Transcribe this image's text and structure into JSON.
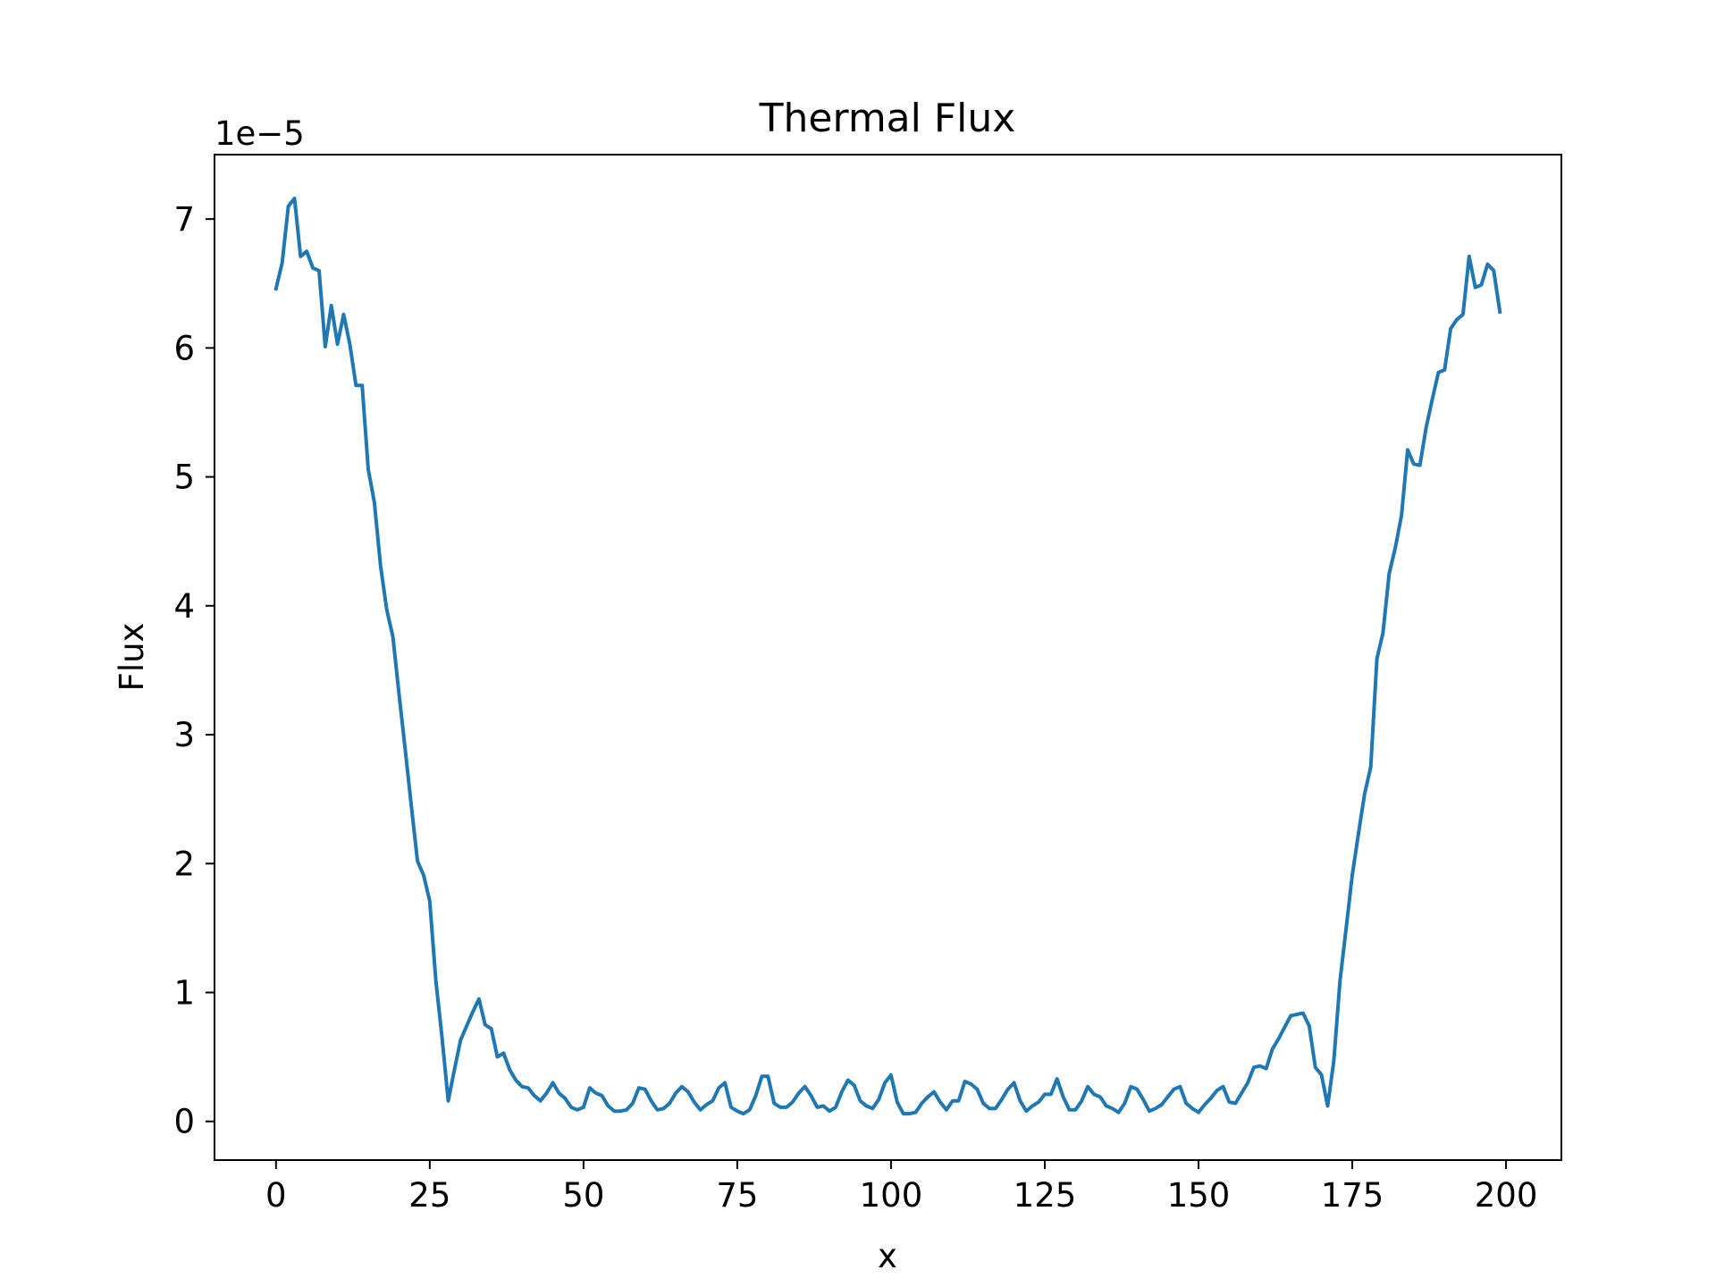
{
  "chart_data": {
    "type": "line",
    "title": "Thermal Flux",
    "xlabel": "x",
    "ylabel": "Flux",
    "y_scale_text": "1e−5",
    "y_multiplier": 1e-05,
    "xlim": [
      -10,
      209
    ],
    "ylim": [
      -0.3,
      7.5
    ],
    "x_ticks": [
      0,
      25,
      50,
      75,
      100,
      125,
      150,
      175,
      200
    ],
    "y_ticks": [
      0,
      1,
      2,
      3,
      4,
      5,
      6,
      7
    ],
    "grid": false,
    "legend": "none",
    "line_color": "#1f77b4",
    "series": [
      {
        "x": [
          0,
          1,
          2,
          3,
          4,
          5,
          6,
          7,
          8,
          9,
          10,
          11,
          12,
          13,
          14,
          15,
          16,
          17,
          18,
          19,
          20,
          21,
          22,
          23,
          24,
          25,
          26,
          27,
          28,
          29,
          30,
          31,
          32,
          33,
          34,
          35,
          36,
          37,
          38,
          39,
          40,
          41,
          42,
          43,
          44,
          45,
          46,
          47,
          48,
          49,
          50,
          51,
          52,
          53,
          54,
          55,
          56,
          57,
          58,
          59,
          60,
          61,
          62,
          63,
          64,
          65,
          66,
          67,
          68,
          69,
          70,
          71,
          72,
          73,
          74,
          75,
          76,
          77,
          78,
          79,
          80,
          81,
          82,
          83,
          84,
          85,
          86,
          87,
          88,
          89,
          90,
          91,
          92,
          93,
          94,
          95,
          96,
          97,
          98,
          99,
          100,
          101,
          102,
          103,
          104,
          105,
          106,
          107,
          108,
          109,
          110,
          111,
          112,
          113,
          114,
          115,
          116,
          117,
          118,
          119,
          120,
          121,
          122,
          123,
          124,
          125,
          126,
          127,
          128,
          129,
          130,
          131,
          132,
          133,
          134,
          135,
          136,
          137,
          138,
          139,
          140,
          141,
          142,
          143,
          144,
          145,
          146,
          147,
          148,
          149,
          150,
          151,
          152,
          153,
          154,
          155,
          156,
          157,
          158,
          159,
          160,
          161,
          162,
          163,
          164,
          165,
          166,
          167,
          168,
          169,
          170,
          171,
          172,
          173,
          174,
          175,
          176,
          177,
          178,
          179,
          180,
          181,
          182,
          183,
          184,
          185,
          186,
          187,
          188,
          189,
          190,
          191,
          192,
          193,
          194,
          195,
          196,
          197,
          198,
          199
        ],
        "y": [
          6.46,
          6.66,
          7.1,
          7.16,
          6.71,
          6.75,
          6.62,
          6.6,
          6.01,
          6.33,
          6.03,
          6.26,
          6.03,
          5.71,
          5.71,
          5.06,
          4.8,
          4.31,
          3.97,
          3.76,
          3.32,
          2.89,
          2.45,
          2.02,
          1.91,
          1.71,
          1.09,
          0.65,
          0.16,
          0.4,
          0.63,
          0.74,
          0.85,
          0.95,
          0.75,
          0.72,
          0.5,
          0.53,
          0.4,
          0.32,
          0.27,
          0.26,
          0.2,
          0.16,
          0.22,
          0.3,
          0.22,
          0.18,
          0.11,
          0.09,
          0.11,
          0.26,
          0.22,
          0.2,
          0.12,
          0.08,
          0.08,
          0.09,
          0.14,
          0.26,
          0.25,
          0.16,
          0.09,
          0.1,
          0.14,
          0.22,
          0.27,
          0.23,
          0.15,
          0.09,
          0.13,
          0.16,
          0.26,
          0.3,
          0.11,
          0.08,
          0.06,
          0.09,
          0.2,
          0.35,
          0.35,
          0.14,
          0.11,
          0.11,
          0.15,
          0.22,
          0.27,
          0.2,
          0.11,
          0.12,
          0.08,
          0.11,
          0.23,
          0.32,
          0.28,
          0.16,
          0.12,
          0.1,
          0.17,
          0.3,
          0.36,
          0.15,
          0.06,
          0.06,
          0.07,
          0.14,
          0.19,
          0.23,
          0.15,
          0.09,
          0.16,
          0.16,
          0.31,
          0.29,
          0.25,
          0.14,
          0.1,
          0.1,
          0.17,
          0.25,
          0.3,
          0.16,
          0.08,
          0.12,
          0.15,
          0.21,
          0.21,
          0.33,
          0.19,
          0.09,
          0.09,
          0.16,
          0.27,
          0.21,
          0.19,
          0.12,
          0.1,
          0.07,
          0.14,
          0.27,
          0.25,
          0.17,
          0.08,
          0.1,
          0.13,
          0.19,
          0.25,
          0.27,
          0.14,
          0.1,
          0.07,
          0.13,
          0.18,
          0.24,
          0.27,
          0.15,
          0.14,
          0.22,
          0.3,
          0.42,
          0.43,
          0.41,
          0.56,
          0.64,
          0.73,
          0.82,
          0.83,
          0.84,
          0.74,
          0.42,
          0.36,
          0.12,
          0.47,
          1.09,
          1.5,
          1.91,
          2.23,
          2.54,
          2.75,
          3.59,
          3.79,
          4.25,
          4.45,
          4.7,
          5.21,
          5.1,
          5.09,
          5.38,
          5.6,
          5.81,
          5.83,
          6.15,
          6.22,
          6.26,
          6.71,
          6.47,
          6.49,
          6.65,
          6.6,
          6.28
        ]
      }
    ]
  }
}
